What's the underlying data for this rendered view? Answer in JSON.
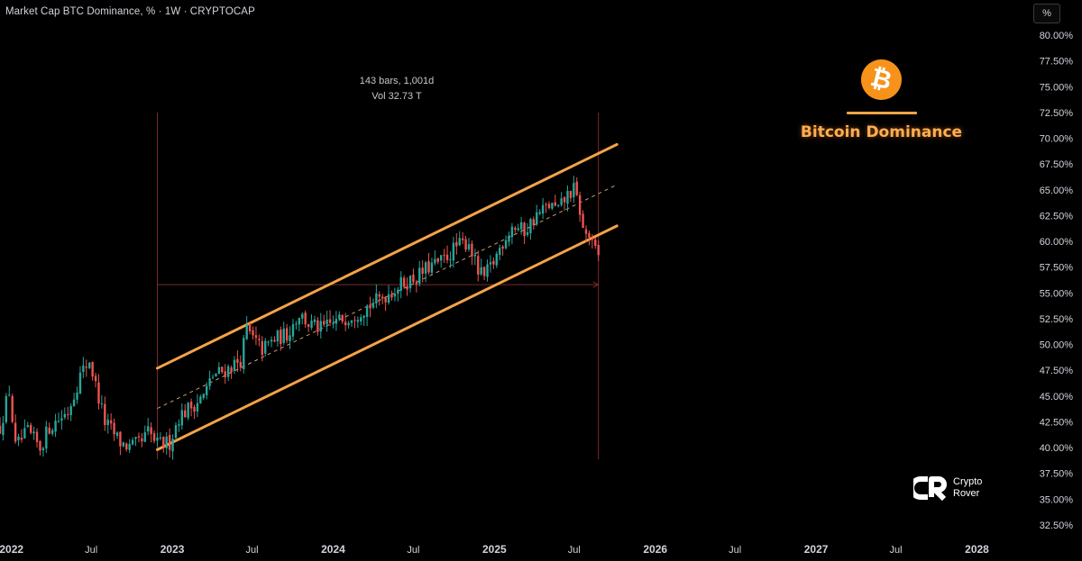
{
  "header": {
    "symbol_line": "Market Cap BTC Dominance, % · 1W · CRYPTOCAP",
    "scale_button": "%"
  },
  "measure_tooltip": {
    "line1": "143 bars, 1,001d",
    "line2": "Vol 32.73 T"
  },
  "overlay": {
    "logo_glyph": "₿",
    "title": "Bitcoin Dominance"
  },
  "brand": {
    "line1": "Crypto",
    "line2": "Rover"
  },
  "colors": {
    "up": "#26a69a",
    "down": "#ef5350",
    "channel": "#f4a347",
    "measure": "#7a2a2a",
    "accent": "#f7931a"
  },
  "chart_data": {
    "type": "candlestick",
    "title": "Market Cap BTC Dominance, % · 1W · CRYPTOCAP",
    "y_unit": "%",
    "ylim": [
      31.5,
      81.0
    ],
    "y_ticks": [
      "80.00%",
      "77.50%",
      "75.00%",
      "72.50%",
      "70.00%",
      "67.50%",
      "65.00%",
      "62.50%",
      "60.00%",
      "57.50%",
      "55.00%",
      "52.50%",
      "50.00%",
      "47.50%",
      "45.00%",
      "42.50%",
      "40.00%",
      "37.50%",
      "35.00%",
      "32.50%"
    ],
    "x_ticks": [
      "2022",
      "Jul",
      "2023",
      "Jul",
      "2024",
      "Jul",
      "2025",
      "Jul",
      "2026",
      "Jul",
      "2027",
      "Jul",
      "2028"
    ],
    "x_range": [
      "2021-12-06",
      "2028-02-14"
    ],
    "weekly_close_path": [
      [
        "2021-12-06",
        42.0
      ],
      [
        "2021-12-27",
        45.5
      ],
      [
        "2022-01-10",
        40.0
      ],
      [
        "2022-02-07",
        41.5
      ],
      [
        "2022-03-07",
        40.0
      ],
      [
        "2022-03-28",
        42.0
      ],
      [
        "2022-05-09",
        43.5
      ],
      [
        "2022-06-06",
        47.0
      ],
      [
        "2022-06-27",
        48.5
      ],
      [
        "2022-07-11",
        46.0
      ],
      [
        "2022-08-01",
        42.5
      ],
      [
        "2022-09-05",
        40.5
      ],
      [
        "2022-09-26",
        40.0
      ],
      [
        "2022-10-24",
        40.5
      ],
      [
        "2022-11-07",
        41.5
      ],
      [
        "2022-11-28",
        40.3
      ],
      [
        "2022-12-26",
        40.5
      ],
      [
        "2023-01-16",
        43.0
      ],
      [
        "2023-02-13",
        44.0
      ],
      [
        "2023-03-13",
        45.0
      ],
      [
        "2023-04-03",
        47.0
      ],
      [
        "2023-05-01",
        47.5
      ],
      [
        "2023-06-05",
        48.5
      ],
      [
        "2023-06-19",
        51.5
      ],
      [
        "2023-07-03",
        50.5
      ],
      [
        "2023-07-24",
        49.5
      ],
      [
        "2023-08-21",
        50.5
      ],
      [
        "2023-09-18",
        51.0
      ],
      [
        "2023-10-16",
        53.0
      ],
      [
        "2023-11-06",
        52.0
      ],
      [
        "2023-12-04",
        51.5
      ],
      [
        "2024-01-01",
        52.0
      ],
      [
        "2024-01-22",
        52.5
      ],
      [
        "2024-02-19",
        53.0
      ],
      [
        "2024-03-11",
        53.5
      ],
      [
        "2024-04-01",
        54.0
      ],
      [
        "2024-05-06",
        55.0
      ],
      [
        "2024-06-10",
        56.0
      ],
      [
        "2024-07-08",
        56.5
      ],
      [
        "2024-08-05",
        57.5
      ],
      [
        "2024-09-02",
        58.0
      ],
      [
        "2024-10-07",
        59.5
      ],
      [
        "2024-11-04",
        60.0
      ],
      [
        "2024-11-25",
        57.0
      ],
      [
        "2024-12-09",
        56.5
      ],
      [
        "2024-12-30",
        58.0
      ],
      [
        "2025-01-20",
        60.0
      ],
      [
        "2025-02-10",
        61.5
      ],
      [
        "2025-03-10",
        61.0
      ],
      [
        "2025-04-07",
        62.5
      ],
      [
        "2025-05-05",
        63.5
      ],
      [
        "2025-05-26",
        63.0
      ],
      [
        "2025-06-16",
        64.5
      ],
      [
        "2025-06-30",
        65.0
      ],
      [
        "2025-07-14",
        63.0
      ],
      [
        "2025-07-21",
        61.0
      ],
      [
        "2025-08-04",
        60.5
      ],
      [
        "2025-08-11",
        59.5
      ],
      [
        "2025-08-25",
        58.5
      ]
    ],
    "channel": {
      "upper": [
        [
          "2022-11-28",
          47.7
        ],
        [
          "2025-10-06",
          69.4
        ]
      ],
      "median": [
        [
          "2022-11-28",
          43.8
        ],
        [
          "2025-10-06",
          65.5
        ]
      ],
      "lower": [
        [
          "2022-11-28",
          39.8
        ],
        [
          "2025-10-06",
          61.5
        ]
      ]
    },
    "measure": {
      "start": "2022-11-28",
      "end": "2025-08-25",
      "bars": 143,
      "days": 1001,
      "level": 55.8
    }
  }
}
